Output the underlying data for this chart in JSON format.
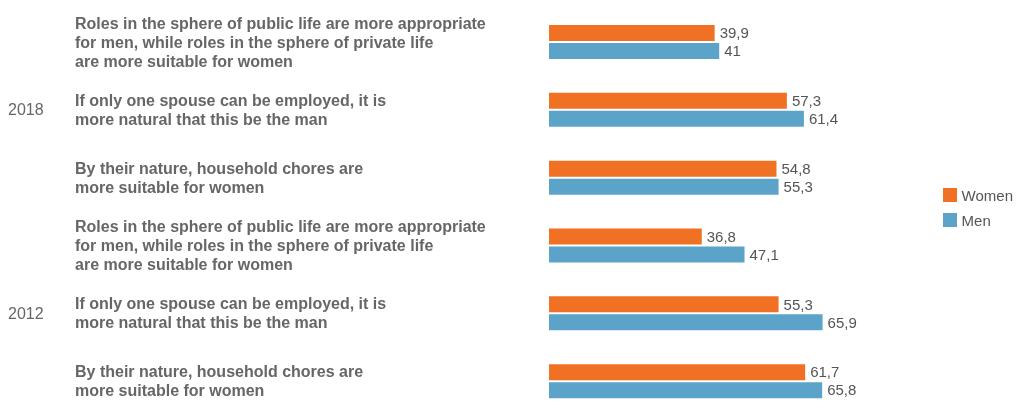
{
  "chart_data": {
    "type": "bar",
    "orientation": "horizontal",
    "categories": [
      "Roles in the sphere of public life are more appropriate\nfor men, while roles in the sphere of private life\nare more suitable for women",
      "If only one spouse can be employed, it is\nmore natural that this be the man",
      "By their nature, household chores are\nmore suitable for women",
      "Roles in the sphere of public life are more appropriate\nfor men, while roles in the sphere of private life\nare more suitable for women",
      "If only one spouse can be employed, it is\nmore natural that this be the man",
      "By their nature, household chores are\nmore suitable for women"
    ],
    "series": [
      {
        "name": "Women",
        "color": "#f07024",
        "values": [
          39.9,
          57.3,
          54.8,
          36.8,
          55.3,
          61.7
        ],
        "value_labels": [
          "39,9",
          "57,3",
          "54,8",
          "36,8",
          "55,3",
          "61,7"
        ]
      },
      {
        "name": "Men",
        "color": "#5ba3c9",
        "values": [
          41,
          61.4,
          55.3,
          47.1,
          65.9,
          65.8
        ],
        "value_labels": [
          "41",
          "61,4",
          "55,3",
          "47,1",
          "65,9",
          "65,8"
        ]
      }
    ],
    "annotations": [
      "2018",
      "2012"
    ],
    "legend": "right"
  }
}
